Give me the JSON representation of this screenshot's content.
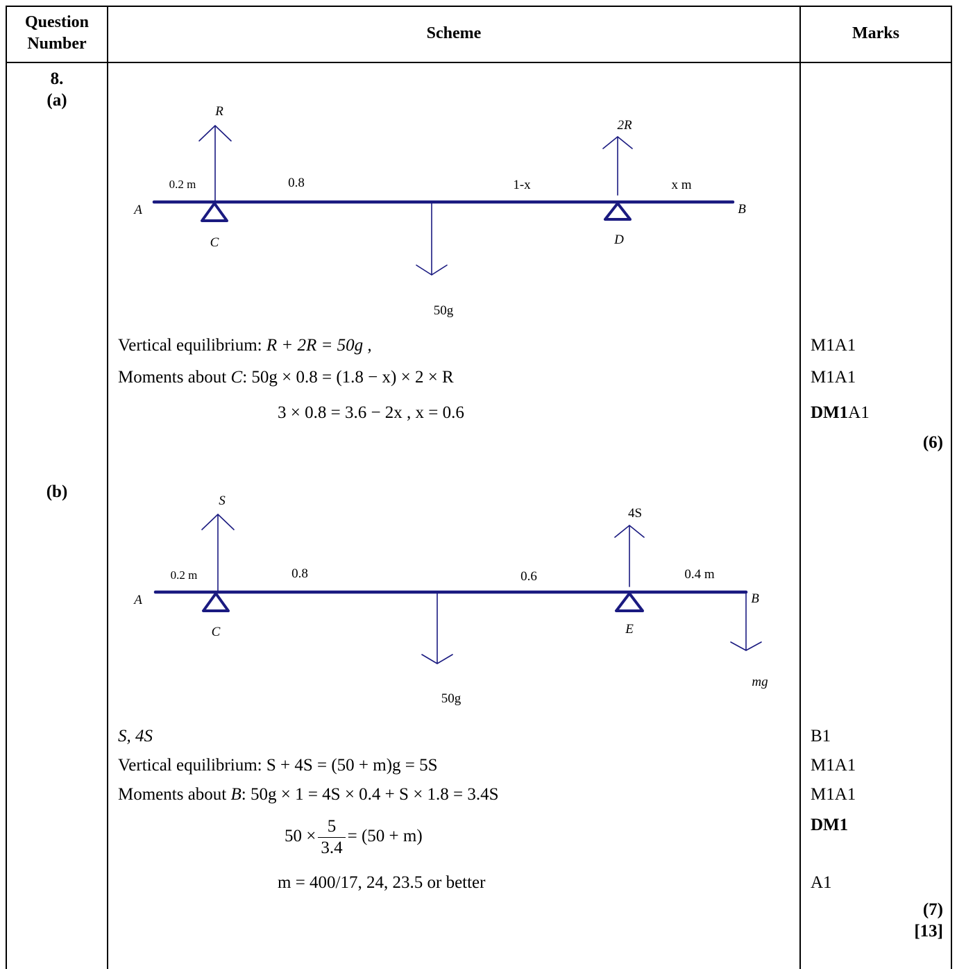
{
  "header": {
    "question_number": "Question Number",
    "scheme": "Scheme",
    "marks": "Marks"
  },
  "question": {
    "number": "8.",
    "part_a_label": "(a)",
    "part_b_label": "(b)"
  },
  "diagram_a": {
    "end_a": "A",
    "end_b": "B",
    "support_c": "C",
    "support_d": "D",
    "force_c": "R",
    "force_d": "2R",
    "weight": "50g",
    "dist_1": "0.2 m",
    "dist_2": "0.8",
    "dist_3": "1-x",
    "dist_4": "x m"
  },
  "part_a_lines": {
    "line1_prefix": "Vertical equilibrium: ",
    "line1_math": "R + 2R = 50g ,",
    "line2_prefix": "Moments about ",
    "line2_point": "C",
    "line2_colon": ": ",
    "line2_math": "50g × 0.8 = (1.8 − x) × 2 × R",
    "line3_math": "3 × 0.8 = 3.6 − 2x ,   x = 0.6"
  },
  "part_a_marks": {
    "m1": "M1A1",
    "m2": "M1A1",
    "m3_bold": "DM1",
    "m3_rest": "A1",
    "total": "(6)"
  },
  "diagram_b": {
    "end_a": "A",
    "end_b": "B",
    "support_c": "C",
    "support_e": "E",
    "force_c": "S",
    "force_e": "4S",
    "weight": "50g",
    "load_b": "mg",
    "dist_1": "0.2 m",
    "dist_2": "0.8",
    "dist_3": "0.6",
    "dist_4": "0.4 m"
  },
  "part_b_lines": {
    "line1": "S, 4S",
    "line2_prefix": "Vertical equilibrium: ",
    "line2_math": "S + 4S = (50 + m)g = 5S",
    "line3_prefix": "Moments about ",
    "line3_point": "B",
    "line3_colon": ": ",
    "line3_math": "50g × 1 = 4S × 0.4 + S × 1.8 = 3.4S",
    "line4_lhs": "50 ×",
    "line4_num": "5",
    "line4_den": "3.4",
    "line4_rhs": "= (50 + m)",
    "line5": "m = 400/17, 24, 23.5 or better"
  },
  "part_b_marks": {
    "m1": "B1",
    "m2": "M1A1",
    "m3": "M1A1",
    "m4": "DM1",
    "m5": "A1",
    "total": "(7)",
    "grand_total": "[13]"
  },
  "colors": {
    "rod": "#1a1a80",
    "arrow": "#1a1a80"
  }
}
